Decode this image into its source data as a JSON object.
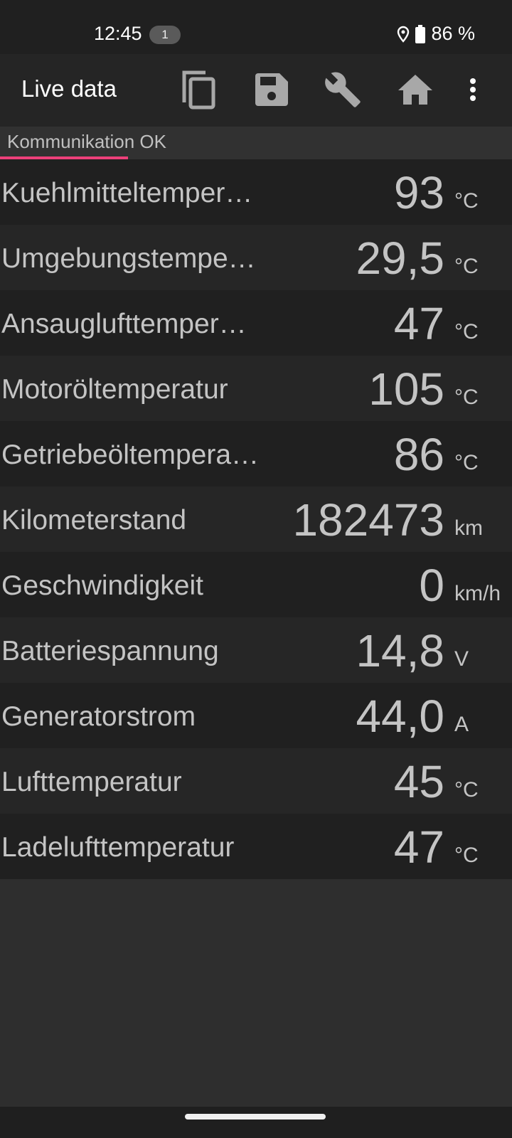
{
  "status_bar": {
    "time": "12:45",
    "notification_count": "1",
    "battery": "86 %",
    "icons": [
      "location-icon",
      "battery-icon"
    ]
  },
  "app_bar": {
    "title": "Live data",
    "actions": [
      "copy-icon",
      "save-icon",
      "wrench-icon",
      "home-icon",
      "more-vert-icon"
    ]
  },
  "tab": {
    "label": "Kommunikation OK",
    "indicator_color": "#ec407a"
  },
  "rows": [
    {
      "label": "Kuehlmitteltemper…",
      "value": "93",
      "unit": "°C"
    },
    {
      "label": "Umgebungstempe…",
      "value": "29,5",
      "unit": "°C"
    },
    {
      "label": "Ansauglufttemper…",
      "value": "47",
      "unit": "°C"
    },
    {
      "label": "Motoröltemperatur",
      "value": "105",
      "unit": "°C"
    },
    {
      "label": "Getriebeöltempera…",
      "value": "86",
      "unit": "°C"
    },
    {
      "label": "Kilometerstand",
      "value": "182473",
      "unit": "km"
    },
    {
      "label": "Geschwindigkeit",
      "value": "0",
      "unit": "km/h"
    },
    {
      "label": "Batteriespannung",
      "value": "14,8",
      "unit": "V"
    },
    {
      "label": "Generatorstrom",
      "value": "44,0",
      "unit": "A"
    },
    {
      "label": "Lufttemperatur",
      "value": "45",
      "unit": "°C"
    },
    {
      "label": "Ladelufttemperatur",
      "value": "47",
      "unit": "°C"
    }
  ]
}
